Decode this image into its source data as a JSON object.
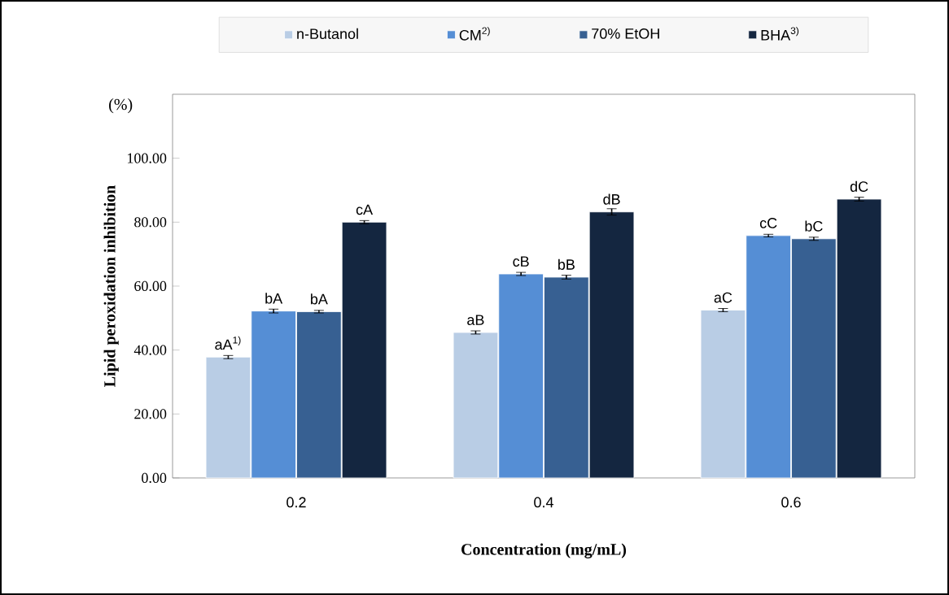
{
  "chart_data": {
    "type": "bar",
    "xlabel": "Concentration (mg/mL)",
    "ylabel": "Lipid peroxidation  inhibition",
    "annotations": [
      "(%)",
      "aA$^{1)}$",
      "aB",
      "aC",
      "bA",
      "cB",
      "cC",
      "bA",
      "bB",
      "bC",
      "cA",
      "dB",
      "dC"
    ],
    "categories": [
      "0.2",
      "0.4",
      "0.6"
    ],
    "series": [
      {
        "name": "n-Butanol",
        "color": "#b9cde5",
        "values": [
          37.8,
          45.5,
          52.5
        ],
        "errors": [
          0.5,
          0.5,
          0.5
        ]
      },
      {
        "name": "CM$^{2)}$",
        "color": "#558ed5",
        "values": [
          52.2,
          63.8,
          75.8
        ],
        "errors": [
          0.6,
          0.5,
          0.4
        ]
      },
      {
        "name": "70% EtOH",
        "color": "#376092",
        "values": [
          52.0,
          62.8,
          74.8
        ],
        "errors": [
          0.4,
          0.6,
          0.5
        ]
      },
      {
        "name": "BHA$^{3)}$",
        "color": "#142640",
        "values": [
          80.0,
          83.2,
          87.2
        ],
        "errors": [
          0.5,
          1.0,
          0.6
        ]
      }
    ],
    "ylim": [
      0,
      120
    ],
    "yticks": [
      {
        "value": 0,
        "label": "0.00"
      },
      {
        "value": 20,
        "label": "20.00"
      },
      {
        "value": 40,
        "label": "40.00"
      },
      {
        "value": 60,
        "label": "60.00"
      },
      {
        "value": 80,
        "label": "80.00"
      },
      {
        "value": 100,
        "label": "100.00"
      }
    ],
    "legend": "top",
    "grid": false
  }
}
